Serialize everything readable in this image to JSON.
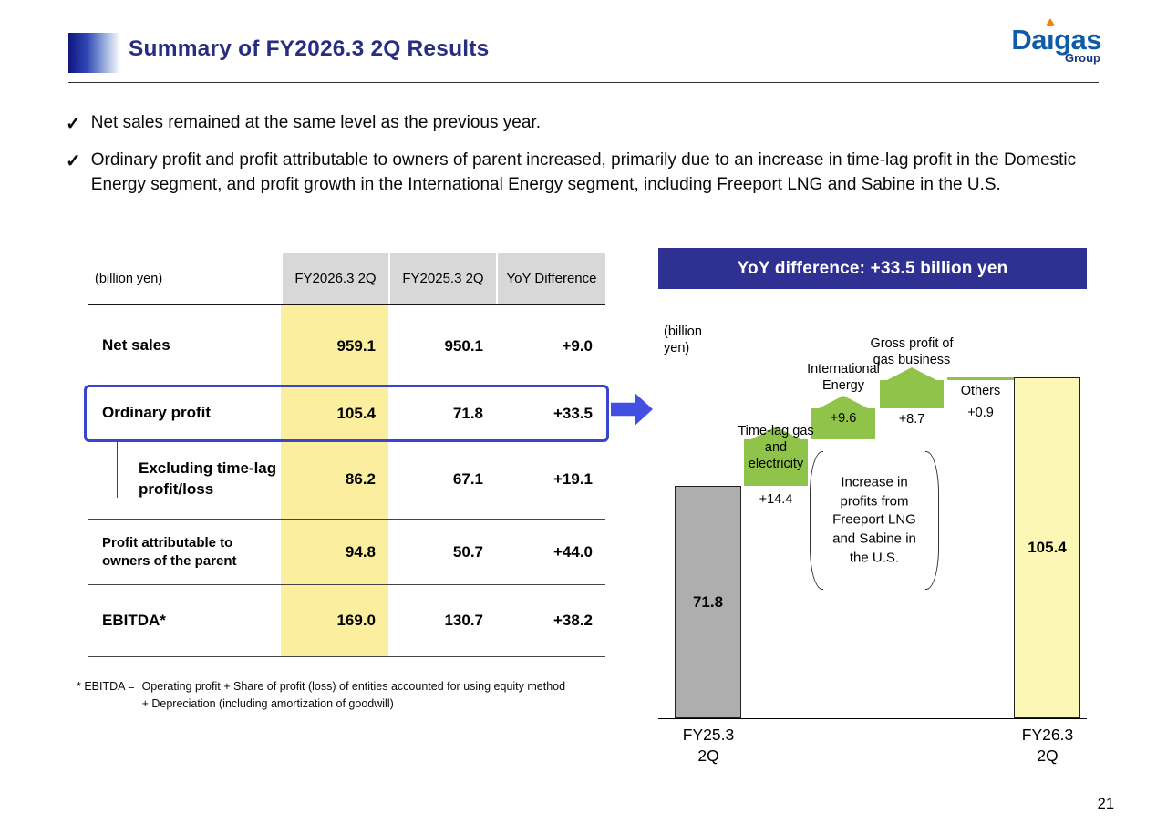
{
  "icons": {
    "check": "✓"
  },
  "header": {
    "title": "Summary of FY2026.3 2Q Results",
    "logo": {
      "part1": "Da",
      "part2": "ı",
      "part3": "gas",
      "sub": "Group"
    }
  },
  "bullets": [
    "Net sales remained at the same level as the previous year.",
    "Ordinary profit and profit attributable to owners of parent increased, primarily due to an increase in time-lag profit in the Domestic Energy segment, and profit growth in the International Energy segment, including Freeport LNG and Sabine in the U.S."
  ],
  "table": {
    "unit_label": "(billion yen)",
    "columns": [
      "FY2026.3 2Q",
      "FY2025.3 2Q",
      "YoY Difference"
    ],
    "rows": [
      {
        "label": "Net sales",
        "fy2026": "959.1",
        "fy2025": "950.1",
        "yoy": "+9.0"
      },
      {
        "label": "Ordinary profit",
        "fy2026": "105.4",
        "fy2025": "71.8",
        "yoy": "+33.5",
        "highlight": true
      },
      {
        "label": "Excluding time-lag profit/loss",
        "fy2026": "86.2",
        "fy2025": "67.1",
        "yoy": "+19.1",
        "sub_item": true
      },
      {
        "label": "Profit attributable to owners of the parent",
        "fy2026": "94.8",
        "fy2025": "50.7",
        "yoy": "+44.0"
      },
      {
        "label": "EBITDA*",
        "fy2026": "169.0",
        "fy2025": "130.7",
        "yoy": "+38.2"
      }
    ],
    "footnote_label": "* EBITDA =",
    "footnote_line1": "Operating profit + Share of profit (loss) of entities accounted for using equity method",
    "footnote_line2": "+ Depreciation (including amortization of goodwill)"
  },
  "chart_data": {
    "type": "waterfall",
    "title": "YoY difference: +33.5 billion yen",
    "unit_label": "(billion yen)",
    "baseline": 0,
    "start": {
      "label": "FY25.3\n2Q",
      "value": 71.8
    },
    "end": {
      "label": "FY26.3\n2Q",
      "value": 105.4
    },
    "steps": [
      {
        "label": "Time-lag gas and electricity",
        "value": 14.4,
        "display": "+14.4"
      },
      {
        "label": "International Energy",
        "value": 9.6,
        "display": "+9.6"
      },
      {
        "label": "Gross profit of gas business",
        "value": 8.7,
        "display": "+8.7"
      },
      {
        "label": "Others",
        "value": 0.9,
        "display": "+0.9"
      }
    ],
    "annotation": "Increase in profits from Freeport LNG and Sabine in the U.S.",
    "colors": {
      "start_bar": "#aeaeae",
      "end_bar": "#fcf7b4",
      "step": "#8fc34a",
      "banner": "#2e3192"
    }
  },
  "slide": {
    "page_number": "21"
  }
}
